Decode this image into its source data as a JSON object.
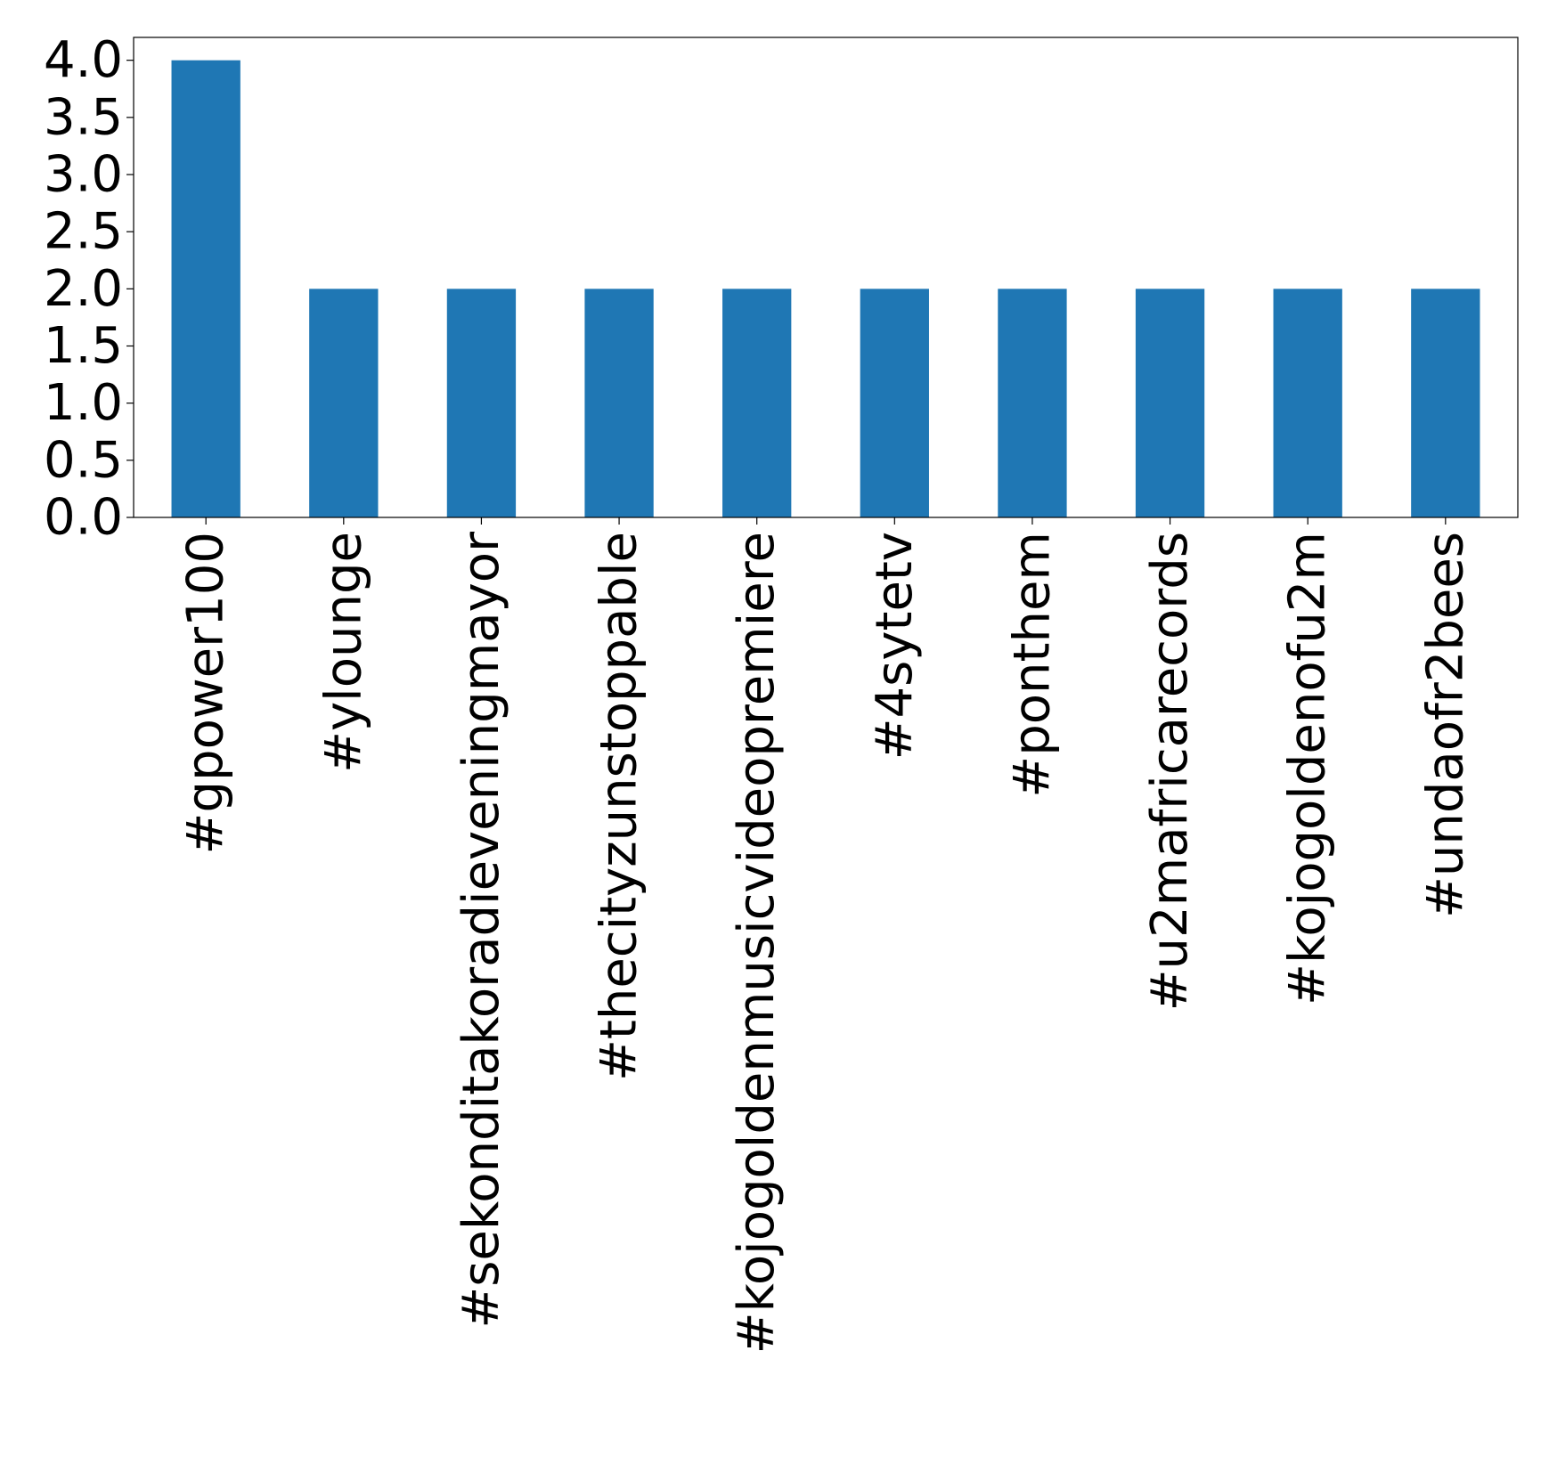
{
  "chart_data": {
    "type": "bar",
    "title": "",
    "xlabel": "",
    "ylabel": "",
    "categories": [
      "#gpower100",
      "#ylounge",
      "#sekonditakoradieveningmayor",
      "#thecityzunstoppable",
      "#kojogoldenmusicvideopremiere",
      "#4sytetv",
      "#ponthem",
      "#u2mafricarecords",
      "#kojogoldenofu2m",
      "#undaofr2bees"
    ],
    "values": [
      4,
      2,
      2,
      2,
      2,
      2,
      2,
      2,
      2,
      2
    ],
    "ylim": [
      0,
      4.2
    ],
    "yticks": [
      "0.0",
      "0.5",
      "1.0",
      "1.5",
      "2.0",
      "2.5",
      "3.0",
      "3.5",
      "4.0"
    ],
    "bar_color": "#1f77b4",
    "grid": false,
    "legend": "none"
  }
}
